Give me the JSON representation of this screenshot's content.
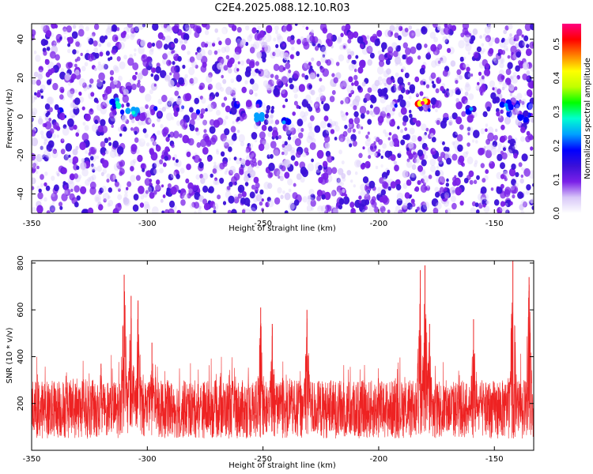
{
  "title": "C2E4.2025.088.12.10.R03",
  "colors": {
    "snr_line": "#ee2222",
    "axis": "#000000",
    "background": "#ffffff"
  },
  "chart_data": [
    {
      "type": "heatmap",
      "xlabel": "Height of straight line (km)",
      "ylabel": "Frequency (Hz)",
      "xlim": [
        -350,
        -133
      ],
      "ylim": [
        -50,
        48
      ],
      "x_ticks": [
        -350,
        -300,
        -250,
        -200,
        -150
      ],
      "y_ticks": [
        -40,
        -20,
        0,
        20,
        40
      ],
      "colorbar": {
        "label": "Normalized spectral amplitude",
        "range": [
          0.0,
          0.56
        ],
        "ticks": [
          0.0,
          0.1,
          0.2,
          0.3,
          0.4,
          0.5
        ],
        "colormap": [
          "#ffffff",
          "#d8c8f8",
          "#7a20e8",
          "#3a10d8",
          "#0000ff",
          "#00a0ff",
          "#00ffd0",
          "#00ff00",
          "#c0ff00",
          "#ffff00",
          "#ff8000",
          "#ff0000",
          "#ff0080"
        ]
      },
      "signal_band": {
        "center_hz": 3,
        "width_hz": 10
      },
      "hotspots": [
        {
          "x": -313,
          "y": 7,
          "value": 0.28
        },
        {
          "x": -306,
          "y": 2,
          "value": 0.26
        },
        {
          "x": -252,
          "y": 0,
          "value": 0.25
        },
        {
          "x": -241,
          "y": -3,
          "value": 0.22
        },
        {
          "x": -181,
          "y": 7,
          "value": 0.55
        },
        {
          "x": -160,
          "y": 4,
          "value": 0.22
        },
        {
          "x": -145,
          "y": 6,
          "value": 0.24
        },
        {
          "x": -138,
          "y": 0,
          "value": 0.2
        }
      ]
    },
    {
      "type": "line",
      "xlabel": "Height of straight line (km)",
      "ylabel": "SNR (10 * v/v)",
      "xlim": [
        -350,
        -133
      ],
      "ylim": [
        0,
        810
      ],
      "x_ticks": [
        -350,
        -300,
        -250,
        -200,
        -150
      ],
      "y_ticks": [
        200,
        400,
        600,
        800
      ],
      "baseline_range": [
        50,
        300
      ],
      "peaks": [
        {
          "x": -320,
          "y": 370
        },
        {
          "x": -310,
          "y": 750
        },
        {
          "x": -307,
          "y": 660
        },
        {
          "x": -304,
          "y": 640
        },
        {
          "x": -298,
          "y": 460
        },
        {
          "x": -251,
          "y": 610
        },
        {
          "x": -246,
          "y": 540
        },
        {
          "x": -231,
          "y": 600
        },
        {
          "x": -182,
          "y": 770
        },
        {
          "x": -180,
          "y": 790
        },
        {
          "x": -178,
          "y": 540
        },
        {
          "x": -159,
          "y": 560
        },
        {
          "x": -142,
          "y": 810
        },
        {
          "x": -135,
          "y": 740
        }
      ]
    }
  ]
}
